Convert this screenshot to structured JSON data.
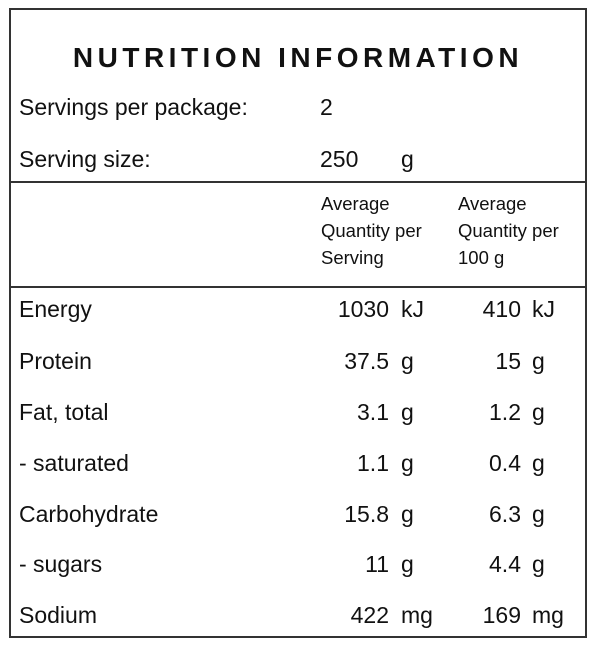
{
  "title": "NUTRITION INFORMATION",
  "servings": {
    "label": "Servings per package:",
    "value": "2"
  },
  "serving_size": {
    "label": "Serving size:",
    "value": "250",
    "unit": "g"
  },
  "columns": {
    "per_serving": [
      "Average",
      "Quantity per",
      "Serving"
    ],
    "per_100g": [
      "Average",
      "Quantity per",
      "100 g"
    ]
  },
  "rows": [
    {
      "label": "Energy",
      "serving": "1030",
      "serving_unit": "kJ",
      "per100": "410",
      "per100_unit": "kJ"
    },
    {
      "label": "Protein",
      "serving": "37.5",
      "serving_unit": "g",
      "per100": "15",
      "per100_unit": "g"
    },
    {
      "label": "Fat, total",
      "serving": "3.1",
      "serving_unit": "g",
      "per100": "1.2",
      "per100_unit": "g"
    },
    {
      "label": "- saturated",
      "serving": "1.1",
      "serving_unit": "g",
      "per100": "0.4",
      "per100_unit": "g"
    },
    {
      "label": "Carbohydrate",
      "serving": "15.8",
      "serving_unit": "g",
      "per100": "6.3",
      "per100_unit": "g"
    },
    {
      "label": "- sugars",
      "serving": "11",
      "serving_unit": "g",
      "per100": "4.4",
      "per100_unit": "g"
    },
    {
      "label": "Sodium",
      "serving": "422",
      "serving_unit": "mg",
      "per100": "169",
      "per100_unit": "mg"
    }
  ]
}
